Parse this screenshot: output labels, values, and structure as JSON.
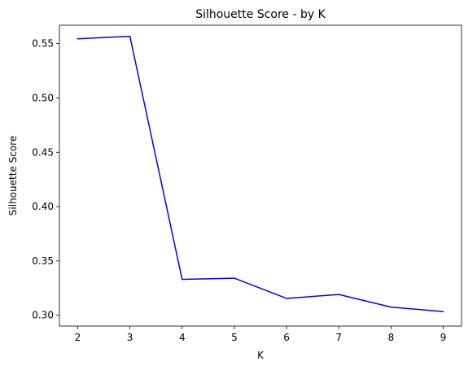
{
  "chart_data": {
    "type": "line",
    "title": "Silhouette Score - by K",
    "xlabel": "K",
    "ylabel": "Silhouette Score",
    "x": [
      2,
      3,
      4,
      5,
      6,
      7,
      8,
      9
    ],
    "xticks": [
      "2",
      "3",
      "4",
      "5",
      "6",
      "7",
      "8",
      "9"
    ],
    "xlim": [
      1.65,
      9.35
    ],
    "yticks": [
      "0.30",
      "0.35",
      "0.40",
      "0.45",
      "0.50",
      "0.55"
    ],
    "ylim": [
      0.29,
      0.567
    ],
    "grid": false,
    "legend": "none",
    "series": [
      {
        "color": "#0000ff",
        "values": [
          0.5545,
          0.5568,
          0.333,
          0.3341,
          0.3155,
          0.3191,
          0.3075,
          0.3033
        ]
      }
    ]
  }
}
